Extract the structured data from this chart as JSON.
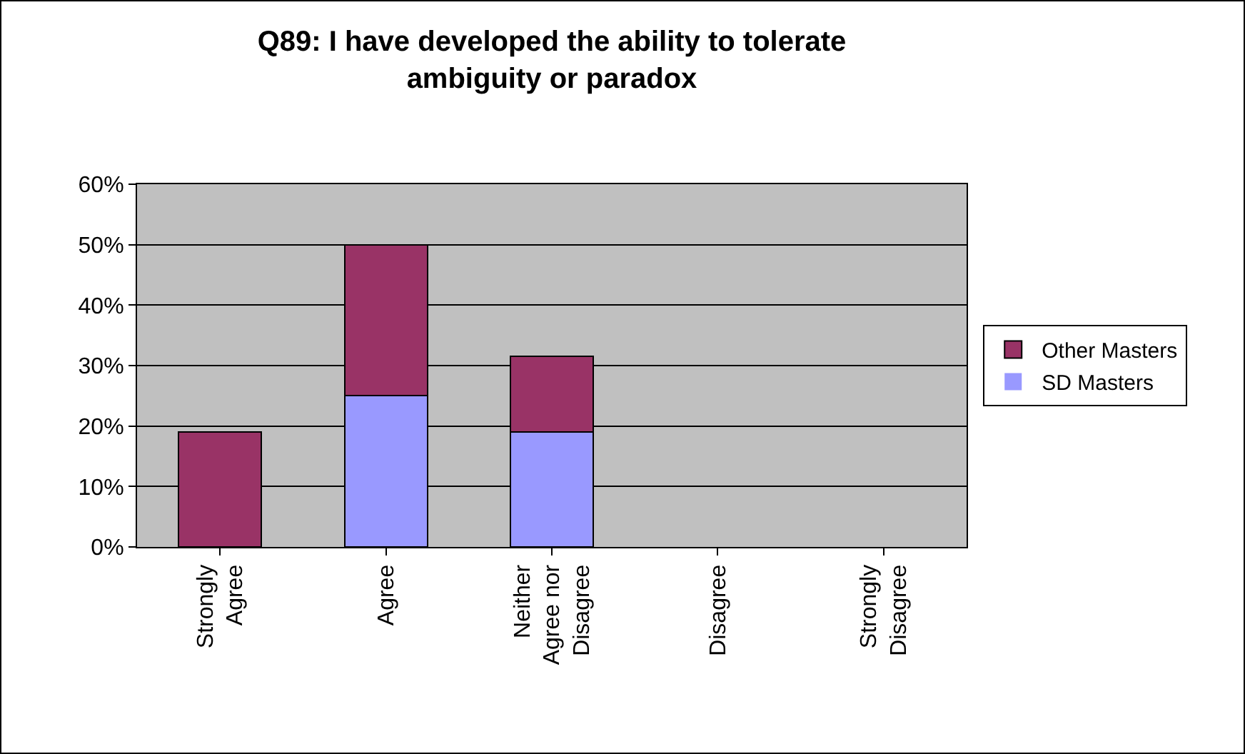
{
  "chart_data": {
    "type": "bar",
    "title": "Q89: I have developed the ability to tolerate ambiguity or paradox",
    "categories": [
      "Strongly Agree",
      "Agree",
      "Neither Agree nor Disagree",
      "Disagree",
      "Strongly Disagree"
    ],
    "stacked": true,
    "series": [
      {
        "name": "SD Masters",
        "color": "#9999ff",
        "values": [
          0,
          25,
          19,
          0,
          0
        ]
      },
      {
        "name": "Other Masters",
        "color": "#993366",
        "values": [
          19,
          25,
          12.5,
          0,
          0
        ]
      }
    ],
    "ylim": [
      0,
      60
    ],
    "yticks": [
      {
        "value": 0,
        "label": "0%"
      },
      {
        "value": 10,
        "label": "10%"
      },
      {
        "value": 20,
        "label": "20%"
      },
      {
        "value": 30,
        "label": "30%"
      },
      {
        "value": 40,
        "label": "40%"
      },
      {
        "value": 50,
        "label": "50%"
      },
      {
        "value": 60,
        "label": "60%"
      }
    ],
    "grid": "y",
    "legend": "right"
  }
}
